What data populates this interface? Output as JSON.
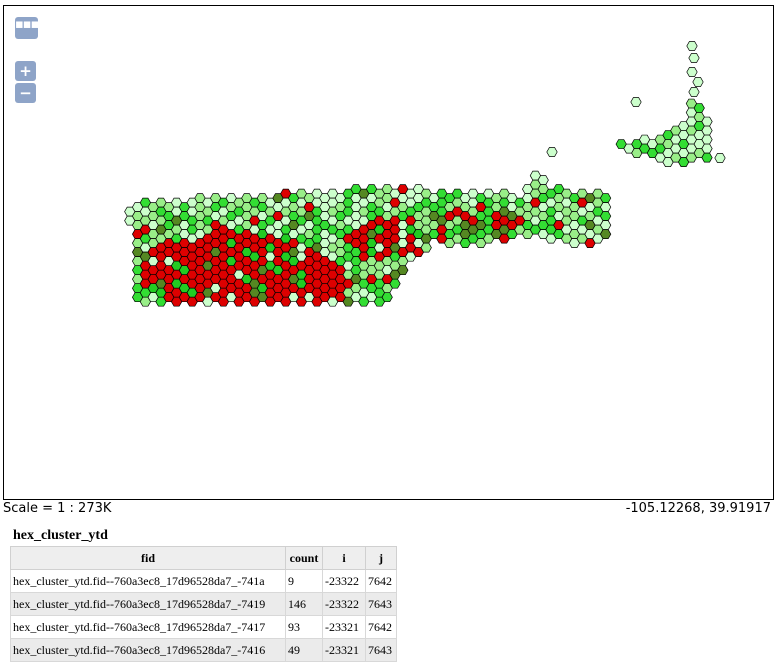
{
  "map": {
    "controls": {
      "layer_switcher_glyph": "▪▪▪",
      "zoom_in_glyph": "+",
      "zoom_out_glyph": "−"
    },
    "scale_label": "Scale = 1 : 273K",
    "coordinates": "-105.12268, 39.91917",
    "legend_colors": {
      "stroke": "#000000",
      "very_low": "#ccffcc",
      "low": "#99ee88",
      "mid": "#33dd33",
      "high": "#22cc22",
      "dark": "#558822",
      "hot": "#dd0000"
    }
  },
  "feature_info": {
    "layer_title": "hex_cluster_ytd",
    "columns": [
      "fid",
      "count",
      "i",
      "j"
    ],
    "rows": [
      {
        "fid": "hex_cluster_ytd.fid--760a3ec8_17d96528da7_-741a",
        "count": "9",
        "i": "-23322",
        "j": "7642"
      },
      {
        "fid": "hex_cluster_ytd.fid--760a3ec8_17d96528da7_-7419",
        "count": "146",
        "i": "-23322",
        "j": "7643"
      },
      {
        "fid": "hex_cluster_ytd.fid--760a3ec8_17d96528da7_-7417",
        "count": "93",
        "i": "-23321",
        "j": "7642"
      },
      {
        "fid": "hex_cluster_ytd.fid--760a3ec8_17d96528da7_-7416",
        "count": "49",
        "i": "-23321",
        "j": "7643"
      }
    ]
  }
}
